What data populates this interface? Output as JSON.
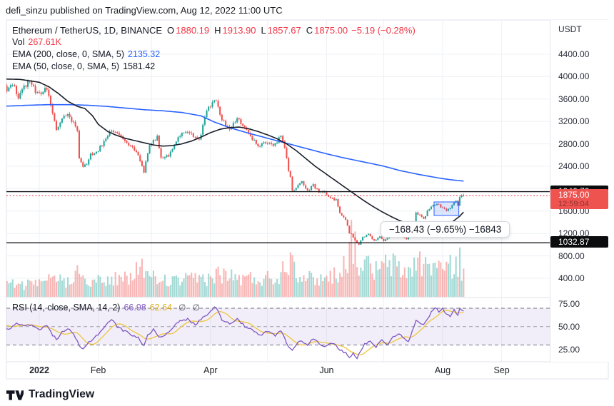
{
  "attribution": "defi_sinzu published on TradingView.com, Aug 12, 2022 11:00 UTC",
  "footer": {
    "brand": "TradingView"
  },
  "legend": {
    "symbol": "Ethereum / TetherUS, 1D, BINANCE",
    "o_label": "O",
    "o_value": "1880.19",
    "h_label": "H",
    "h_value": "1913.90",
    "l_label": "L",
    "l_value": "1857.67",
    "c_label": "C",
    "c_value": "1875.00",
    "change": "−5.19 (−0.28%)",
    "vol_label": "Vol",
    "vol_value": "267.61K",
    "ema200_label": "EMA (200, close, 0, SMA, 5)",
    "ema200_value": "2135.32",
    "ema50_label": "EMA (50, close, 0, SMA, 5)",
    "ema50_value": "1581.42"
  },
  "rsi_legend": {
    "label": "RSI (14, close, SMA, 14, 2)",
    "value1": "66.98",
    "value2": "62.64",
    "icon1": "∅",
    "icon2": "∅"
  },
  "tooltip_text": "−168.43 (−9.65%) −16843",
  "axis_currency": "USDT",
  "colors": {
    "up": "#26a69a",
    "down": "#ef5350",
    "vol_up": "rgba(38,166,154,0.42)",
    "vol_down": "rgba(239,83,80,0.42)",
    "ema200": "#2962ff",
    "ema50": "#1b1f2a",
    "rsi": "#7e57c2",
    "rsi_ma": "#edc84b",
    "band_fill": "rgba(126,87,194,0.10)",
    "dash": "#70737e",
    "dash_mid": "#9b9eaa",
    "grid": "#eef0f5",
    "border": "#e0e3eb",
    "red": "#f23645",
    "level": "#16181d",
    "badge_black": "#0b0c0e",
    "badge_red": "#ef5350",
    "box_fill": "rgba(41,98,255,0.16)",
    "box_stroke": "#2962ff"
  },
  "chart_data": {
    "type": "candlestick",
    "title": "Ethereum / TetherUS, 1D, BINANCE",
    "x_unit": "days_since_2022-01-01",
    "x_range": [
      -20,
      223
    ],
    "price_axis_range_shown": [
      400,
      4400
    ],
    "grid": true,
    "price_ticks": [
      {
        "v": 4400,
        "label": "4400.00"
      },
      {
        "v": 4000,
        "label": "4000.00"
      },
      {
        "v": 3600,
        "label": "3600.00"
      },
      {
        "v": 3200,
        "label": "3200.00"
      },
      {
        "v": 2800,
        "label": "2800.00"
      },
      {
        "v": 2400,
        "label": "2400.00"
      },
      {
        "v": 1600,
        "label": "1600.00"
      },
      {
        "v": 1200,
        "label": "1200.00"
      },
      {
        "v": 800,
        "label": "800.00"
      },
      {
        "v": 400,
        "label": "400.00"
      }
    ],
    "rsi_ticks": [
      {
        "v": 75,
        "label": "75.00"
      },
      {
        "v": 50,
        "label": "50.00"
      },
      {
        "v": 25,
        "label": "25.00"
      }
    ],
    "months": [
      {
        "label": "2022",
        "day": 0,
        "bold": true
      },
      {
        "label": "Feb",
        "day": 31
      },
      {
        "label": "Apr",
        "day": 90
      },
      {
        "label": "Jun",
        "day": 151
      },
      {
        "label": "Aug",
        "day": 212
      },
      {
        "label": "Sep",
        "day": 243
      }
    ],
    "month_gridline_days": [
      0,
      31,
      59,
      90,
      120,
      151,
      181,
      212,
      243
    ],
    "levels": [
      {
        "price": 1946.79,
        "label": "1946.79"
      },
      {
        "price": 1032.87,
        "label": "1032.87"
      }
    ],
    "current": {
      "price": 1875.0,
      "label": "1875.00",
      "countdown": "12:59:04"
    },
    "last_candle": {
      "o": 1880.19,
      "h": 1913.9,
      "l": 1857.67,
      "c": 1875.0
    },
    "rsi_band": [
      30,
      70
    ],
    "rsi_values": {
      "rsi": 66.98,
      "rsi_ma": 62.64
    },
    "close_anchors": [
      [
        -20,
        3950
      ],
      [
        -17,
        3720
      ],
      [
        -14,
        3880
      ],
      [
        -11,
        3620
      ],
      [
        -8,
        3800
      ],
      [
        -5,
        3950
      ],
      [
        -2,
        3720
      ],
      [
        1,
        3700
      ],
      [
        4,
        3790
      ],
      [
        7,
        3350
      ],
      [
        9,
        3080
      ],
      [
        12,
        3250
      ],
      [
        15,
        3330
      ],
      [
        18,
        3180
      ],
      [
        20,
        3050
      ],
      [
        21,
        2560
      ],
      [
        23,
        2400
      ],
      [
        25,
        2450
      ],
      [
        27,
        2600
      ],
      [
        31,
        2690
      ],
      [
        35,
        2880
      ],
      [
        38,
        3060
      ],
      [
        43,
        2930
      ],
      [
        48,
        2760
      ],
      [
        52,
        2620
      ],
      [
        55,
        2300
      ],
      [
        58,
        2780
      ],
      [
        62,
        2930
      ],
      [
        64,
        2550
      ],
      [
        68,
        2600
      ],
      [
        74,
        2950
      ],
      [
        79,
        3020
      ],
      [
        84,
        2860
      ],
      [
        88,
        3400
      ],
      [
        93,
        3580
      ],
      [
        96,
        3230
      ],
      [
        100,
        3030
      ],
      [
        104,
        3250
      ],
      [
        110,
        2990
      ],
      [
        115,
        2750
      ],
      [
        119,
        2830
      ],
      [
        123,
        2750
      ],
      [
        127,
        2940
      ],
      [
        129,
        2750
      ],
      [
        131,
        2340
      ],
      [
        132,
        2230
      ],
      [
        133,
        1960
      ],
      [
        135,
        2020
      ],
      [
        138,
        2130
      ],
      [
        141,
        1960
      ],
      [
        144,
        2060
      ],
      [
        147,
        1940
      ],
      [
        150,
        1940
      ],
      [
        153,
        1830
      ],
      [
        156,
        1800
      ],
      [
        158,
        1580
      ],
      [
        161,
        1450
      ],
      [
        163,
        1210
      ],
      [
        164,
        1190
      ],
      [
        166,
        1080
      ],
      [
        168,
        995
      ],
      [
        170,
        1130
      ],
      [
        173,
        1190
      ],
      [
        176,
        1060
      ],
      [
        179,
        1150
      ],
      [
        181,
        1070
      ],
      [
        184,
        1160
      ],
      [
        187,
        1230
      ],
      [
        190,
        1170
      ],
      [
        193,
        1100
      ],
      [
        196,
        1240
      ],
      [
        198,
        1570
      ],
      [
        200,
        1530
      ],
      [
        202,
        1450
      ],
      [
        204,
        1600
      ],
      [
        207,
        1720
      ],
      [
        209,
        1730
      ],
      [
        211,
        1680
      ],
      [
        213,
        1630
      ],
      [
        215,
        1620
      ],
      [
        217,
        1700
      ],
      [
        219,
        1780
      ],
      [
        220,
        1700
      ],
      [
        221,
        1850
      ],
      [
        222,
        1880
      ],
      [
        223,
        1875
      ]
    ],
    "ema50_anchors": [
      [
        -20,
        3960
      ],
      [
        -10,
        3950
      ],
      [
        0,
        3900
      ],
      [
        5,
        3820
      ],
      [
        10,
        3700
      ],
      [
        15,
        3560
      ],
      [
        20,
        3470
      ],
      [
        24,
        3430
      ],
      [
        28,
        3300
      ],
      [
        31,
        3150
      ],
      [
        36,
        3020
      ],
      [
        40,
        2960
      ],
      [
        45,
        2900
      ],
      [
        50,
        2860
      ],
      [
        55,
        2820
      ],
      [
        60,
        2780
      ],
      [
        65,
        2760
      ],
      [
        70,
        2770
      ],
      [
        75,
        2800
      ],
      [
        80,
        2850
      ],
      [
        85,
        2920
      ],
      [
        90,
        3000
      ],
      [
        95,
        3060
      ],
      [
        100,
        3090
      ],
      [
        105,
        3100
      ],
      [
        110,
        3070
      ],
      [
        115,
        3020
      ],
      [
        120,
        2960
      ],
      [
        125,
        2890
      ],
      [
        130,
        2800
      ],
      [
        135,
        2680
      ],
      [
        140,
        2540
      ],
      [
        145,
        2400
      ],
      [
        150,
        2280
      ],
      [
        155,
        2160
      ],
      [
        160,
        2040
      ],
      [
        165,
        1920
      ],
      [
        170,
        1800
      ],
      [
        175,
        1690
      ],
      [
        180,
        1590
      ],
      [
        185,
        1500
      ],
      [
        190,
        1420
      ],
      [
        195,
        1360
      ],
      [
        200,
        1320
      ],
      [
        203,
        1300
      ],
      [
        206,
        1290
      ],
      [
        209,
        1295
      ],
      [
        212,
        1315
      ],
      [
        215,
        1355
      ],
      [
        218,
        1430
      ],
      [
        221,
        1510
      ],
      [
        223,
        1581
      ]
    ],
    "ema200_anchors": [
      [
        -20,
        3470
      ],
      [
        -5,
        3490
      ],
      [
        5,
        3500
      ],
      [
        15,
        3500
      ],
      [
        25,
        3490
      ],
      [
        35,
        3470
      ],
      [
        45,
        3440
      ],
      [
        55,
        3410
      ],
      [
        65,
        3390
      ],
      [
        75,
        3360
      ],
      [
        85,
        3300
      ],
      [
        92,
        3190
      ],
      [
        100,
        3090
      ],
      [
        110,
        2990
      ],
      [
        120,
        2900
      ],
      [
        130,
        2810
      ],
      [
        140,
        2720
      ],
      [
        150,
        2630
      ],
      [
        160,
        2550
      ],
      [
        170,
        2480
      ],
      [
        180,
        2410
      ],
      [
        190,
        2320
      ],
      [
        200,
        2250
      ],
      [
        210,
        2190
      ],
      [
        216,
        2160
      ],
      [
        223,
        2135
      ]
    ],
    "rsi_anchors": [
      [
        -20,
        52
      ],
      [
        -16,
        47
      ],
      [
        -12,
        55
      ],
      [
        -8,
        50
      ],
      [
        -4,
        52
      ],
      [
        0,
        47
      ],
      [
        4,
        51
      ],
      [
        7,
        41
      ],
      [
        9,
        36
      ],
      [
        12,
        44
      ],
      [
        15,
        48
      ],
      [
        18,
        41
      ],
      [
        20,
        35
      ],
      [
        21,
        28
      ],
      [
        23,
        25
      ],
      [
        26,
        33
      ],
      [
        29,
        38
      ],
      [
        32,
        44
      ],
      [
        35,
        52
      ],
      [
        38,
        58
      ],
      [
        41,
        50
      ],
      [
        44,
        46
      ],
      [
        48,
        42
      ],
      [
        52,
        38
      ],
      [
        55,
        29
      ],
      [
        57,
        40
      ],
      [
        60,
        48
      ],
      [
        63,
        38
      ],
      [
        66,
        41
      ],
      [
        70,
        49
      ],
      [
        74,
        56
      ],
      [
        78,
        58
      ],
      [
        82,
        52
      ],
      [
        86,
        60
      ],
      [
        89,
        65
      ],
      [
        92,
        71
      ],
      [
        94,
        68
      ],
      [
        96,
        58
      ],
      [
        100,
        53
      ],
      [
        104,
        59
      ],
      [
        108,
        50
      ],
      [
        112,
        46
      ],
      [
        116,
        40
      ],
      [
        120,
        45
      ],
      [
        124,
        40
      ],
      [
        127,
        46
      ],
      [
        129,
        37
      ],
      [
        131,
        28
      ],
      [
        133,
        24
      ],
      [
        135,
        31
      ],
      [
        138,
        35
      ],
      [
        141,
        30
      ],
      [
        144,
        37
      ],
      [
        147,
        32
      ],
      [
        150,
        28
      ],
      [
        153,
        33
      ],
      [
        156,
        29
      ],
      [
        158,
        24
      ],
      [
        161,
        22
      ],
      [
        163,
        17
      ],
      [
        165,
        21
      ],
      [
        167,
        16
      ],
      [
        169,
        23
      ],
      [
        171,
        31
      ],
      [
        174,
        35
      ],
      [
        177,
        28
      ],
      [
        180,
        35
      ],
      [
        183,
        31
      ],
      [
        186,
        39
      ],
      [
        189,
        43
      ],
      [
        192,
        36
      ],
      [
        194,
        33
      ],
      [
        196,
        45
      ],
      [
        198,
        58
      ],
      [
        200,
        55
      ],
      [
        202,
        51
      ],
      [
        204,
        59
      ],
      [
        206,
        65
      ],
      [
        208,
        71
      ],
      [
        210,
        67
      ],
      [
        212,
        70
      ],
      [
        214,
        64
      ],
      [
        216,
        62
      ],
      [
        218,
        68
      ],
      [
        219,
        64
      ],
      [
        220,
        62
      ],
      [
        221,
        70
      ],
      [
        222,
        68
      ],
      [
        223,
        67
      ]
    ],
    "volume_anchors": [
      [
        -20,
        0.22
      ],
      [
        -10,
        0.2
      ],
      [
        0,
        0.2
      ],
      [
        8,
        0.3
      ],
      [
        15,
        0.25
      ],
      [
        20,
        0.5
      ],
      [
        24,
        0.32
      ],
      [
        31,
        0.25
      ],
      [
        40,
        0.3
      ],
      [
        48,
        0.28
      ],
      [
        53,
        0.55
      ],
      [
        58,
        0.32
      ],
      [
        70,
        0.25
      ],
      [
        80,
        0.28
      ],
      [
        90,
        0.32
      ],
      [
        95,
        0.38
      ],
      [
        105,
        0.3
      ],
      [
        115,
        0.3
      ],
      [
        125,
        0.32
      ],
      [
        129,
        0.5
      ],
      [
        132,
        0.72
      ],
      [
        136,
        0.42
      ],
      [
        142,
        0.3
      ],
      [
        150,
        0.3
      ],
      [
        156,
        0.38
      ],
      [
        161,
        0.55
      ],
      [
        164,
        1.0
      ],
      [
        166,
        0.75
      ],
      [
        168,
        0.6
      ],
      [
        172,
        0.5
      ],
      [
        178,
        0.42
      ],
      [
        184,
        0.55
      ],
      [
        188,
        0.48
      ],
      [
        193,
        0.38
      ],
      [
        198,
        0.6
      ],
      [
        203,
        0.5
      ],
      [
        208,
        0.55
      ],
      [
        213,
        0.45
      ],
      [
        218,
        0.5
      ],
      [
        221,
        0.6
      ],
      [
        223,
        0.35
      ]
    ],
    "range_box": {
      "day_start": 207.5,
      "day_end": 220.5,
      "price_top": 1763,
      "price_bottom": 1521
    }
  }
}
